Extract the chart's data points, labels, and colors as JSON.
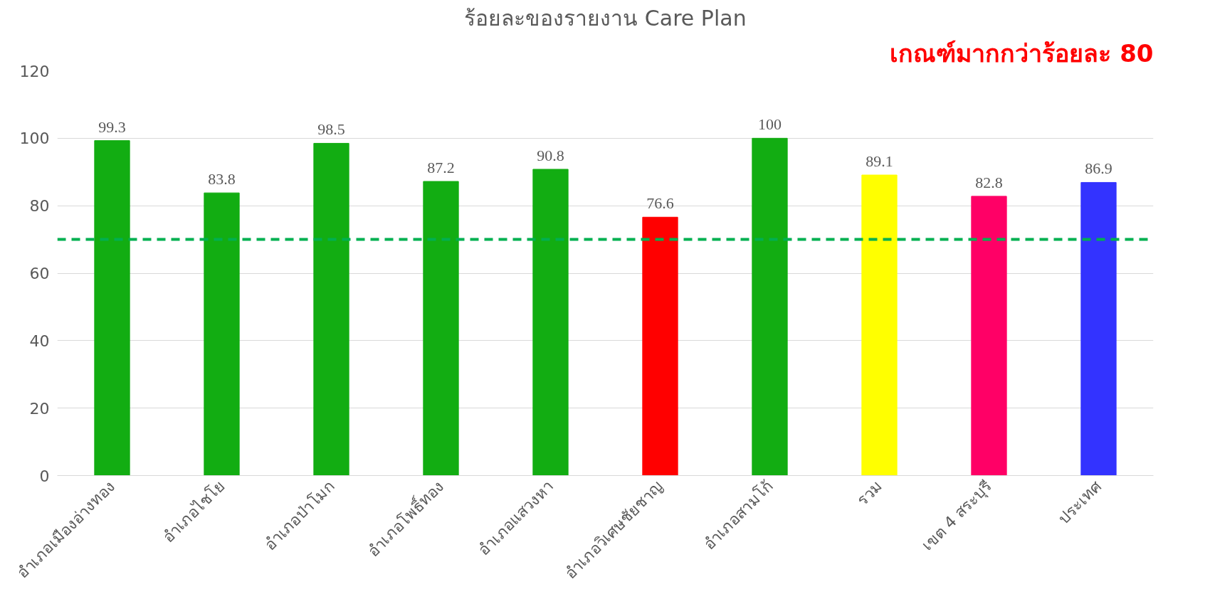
{
  "chart_data": {
    "type": "bar",
    "title": "ร้อยละของรายงาน Care Plan",
    "categories": [
      "อำเภอเมืองอ่างทอง",
      "อำเภอไชโย",
      "อำเภอป่าโมก",
      "อำเภอโพธิ์ทอง",
      "อำเภอแสวงหา",
      "อำเภอวิเศษชัยชาญ",
      "อำเภอสามโก้",
      "รวม",
      "เขต 4 สระบุรี",
      "ประเทศ"
    ],
    "values": [
      99.3,
      83.8,
      98.5,
      87.2,
      90.8,
      76.6,
      100,
      89.1,
      82.8,
      86.9
    ],
    "colors": [
      "#12ad12",
      "#12ad12",
      "#12ad12",
      "#12ad12",
      "#12ad12",
      "#ff0000",
      "#12ad12",
      "#ffff00",
      "#ff0066",
      "#3333ff"
    ],
    "ylim": [
      0,
      120
    ],
    "yticks": [
      0,
      20,
      40,
      60,
      80,
      100,
      120
    ],
    "grid": "y",
    "data_labels": true,
    "ref_lines": [
      {
        "axis": "y",
        "value": 70,
        "color": "#00b050",
        "line_style": "dashed"
      }
    ],
    "annotations": [
      "เกณฑ์มากกว่าร้อยละ 80"
    ]
  }
}
